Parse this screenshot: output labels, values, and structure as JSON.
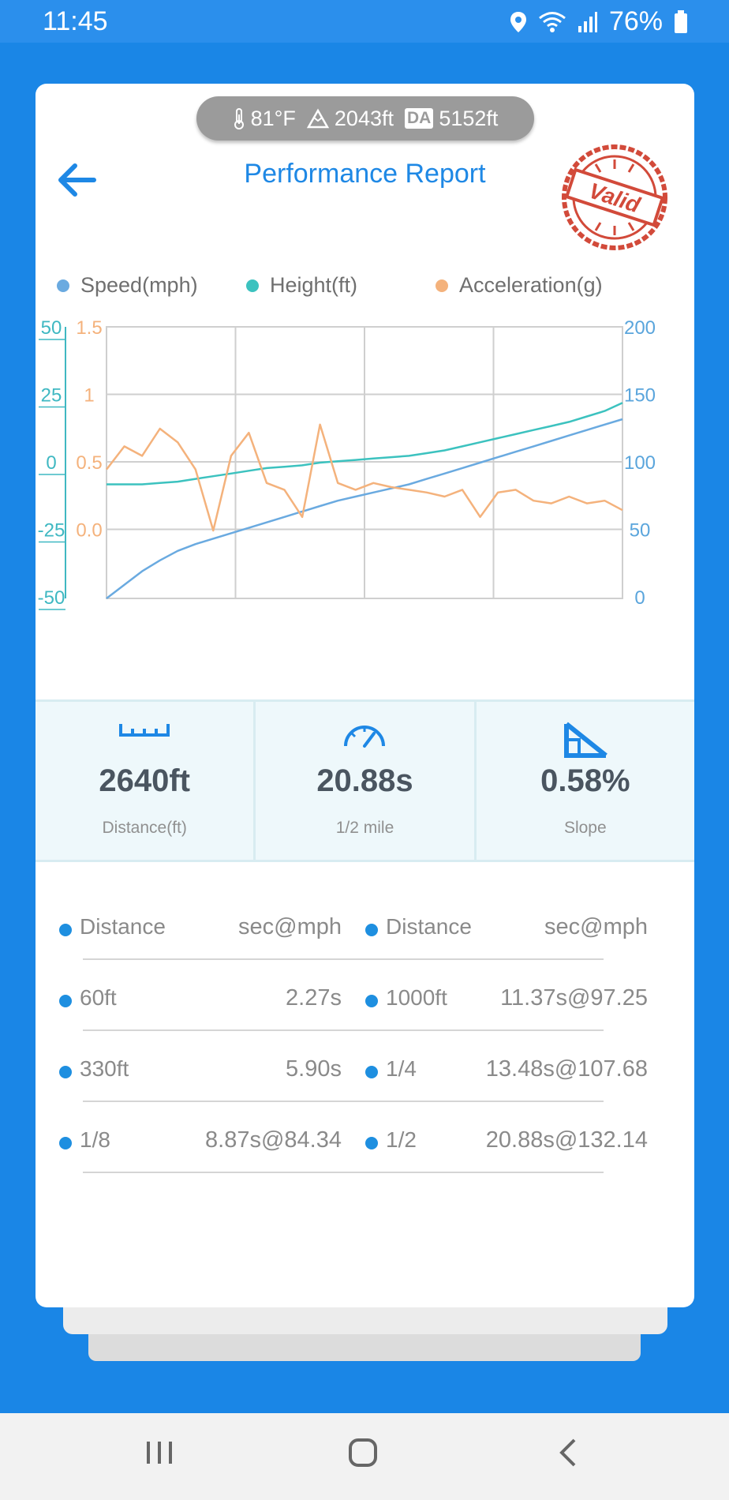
{
  "status_bar": {
    "time": "11:45",
    "battery": "76%"
  },
  "conditions": {
    "temperature": "81°F",
    "altitude": "2043ft",
    "density_label": "DA",
    "density_altitude": "5152ft"
  },
  "header": {
    "title": "Performance Report",
    "stamp_text": "Valid"
  },
  "legend": [
    "Speed(mph)",
    "Height(ft)",
    "Acceleration(g)"
  ],
  "colors": {
    "speed": "#6aaae0",
    "height": "#3cc2bf",
    "acceleration": "#f4b27c",
    "accent": "#1e88e5",
    "axis_left": "#3fb8c2"
  },
  "chart_data": {
    "type": "line",
    "legend": [
      "Speed(mph)",
      "Height(ft)",
      "Acceleration(g)"
    ],
    "axes": {
      "height_ticks": [
        "50",
        "25",
        "0",
        "-25",
        "-50"
      ],
      "acceleration_ticks": [
        "1.5",
        "1",
        "0.5",
        "0.0"
      ],
      "speed_ticks": [
        "200",
        "150",
        "100",
        "50",
        "0"
      ],
      "height_range": [
        -50,
        50
      ],
      "acceleration_range": [
        -0.5,
        1.5
      ],
      "speed_range": [
        0,
        200
      ]
    },
    "grid": true,
    "series": [
      {
        "name": "Speed(mph)",
        "axis": "right",
        "y": [
          0,
          10,
          20,
          28,
          35,
          40,
          44,
          48,
          52,
          56,
          60,
          64,
          68,
          72,
          75,
          78,
          81,
          84,
          88,
          92,
          96,
          100,
          104,
          108,
          112,
          116,
          120,
          124,
          128,
          132
        ]
      },
      {
        "name": "Height(ft)",
        "axis": "left",
        "y": [
          -8,
          -8,
          -8,
          -7.5,
          -7,
          -6,
          -5,
          -4,
          -3,
          -2,
          -1.5,
          -1,
          0,
          0.5,
          1,
          1.5,
          2,
          2.5,
          3.5,
          4.5,
          6,
          7.5,
          9,
          10.5,
          12,
          13.5,
          15,
          17,
          19,
          22
        ]
      },
      {
        "name": "Acceleration(g)",
        "axis": "left2",
        "y": [
          0.45,
          0.62,
          0.55,
          0.75,
          0.65,
          0.45,
          0.0,
          0.55,
          0.72,
          0.35,
          0.3,
          0.1,
          0.78,
          0.35,
          0.3,
          0.35,
          0.32,
          0.3,
          0.28,
          0.25,
          0.3,
          0.1,
          0.28,
          0.3,
          0.22,
          0.2,
          0.25,
          0.2,
          0.22,
          0.15
        ]
      }
    ]
  },
  "stats": [
    {
      "value": "2640ft",
      "label": "Distance(ft)",
      "icon": "ruler-icon"
    },
    {
      "value": "20.88s",
      "label": "1/2 mile",
      "icon": "speedometer-icon"
    },
    {
      "value": "0.58%",
      "label": "Slope",
      "icon": "slope-icon"
    }
  ],
  "results": {
    "header": {
      "label": "Distance",
      "value": "sec@mph"
    },
    "left": [
      {
        "label": "60ft",
        "value": "2.27s"
      },
      {
        "label": "330ft",
        "value": "5.90s"
      },
      {
        "label": "1/8",
        "value": "8.87s@84.34"
      }
    ],
    "right": [
      {
        "label": "1000ft",
        "value": "11.37s@97.25"
      },
      {
        "label": "1/4",
        "value": "13.48s@107.68"
      },
      {
        "label": "1/2",
        "value": "20.88s@132.14"
      }
    ]
  }
}
